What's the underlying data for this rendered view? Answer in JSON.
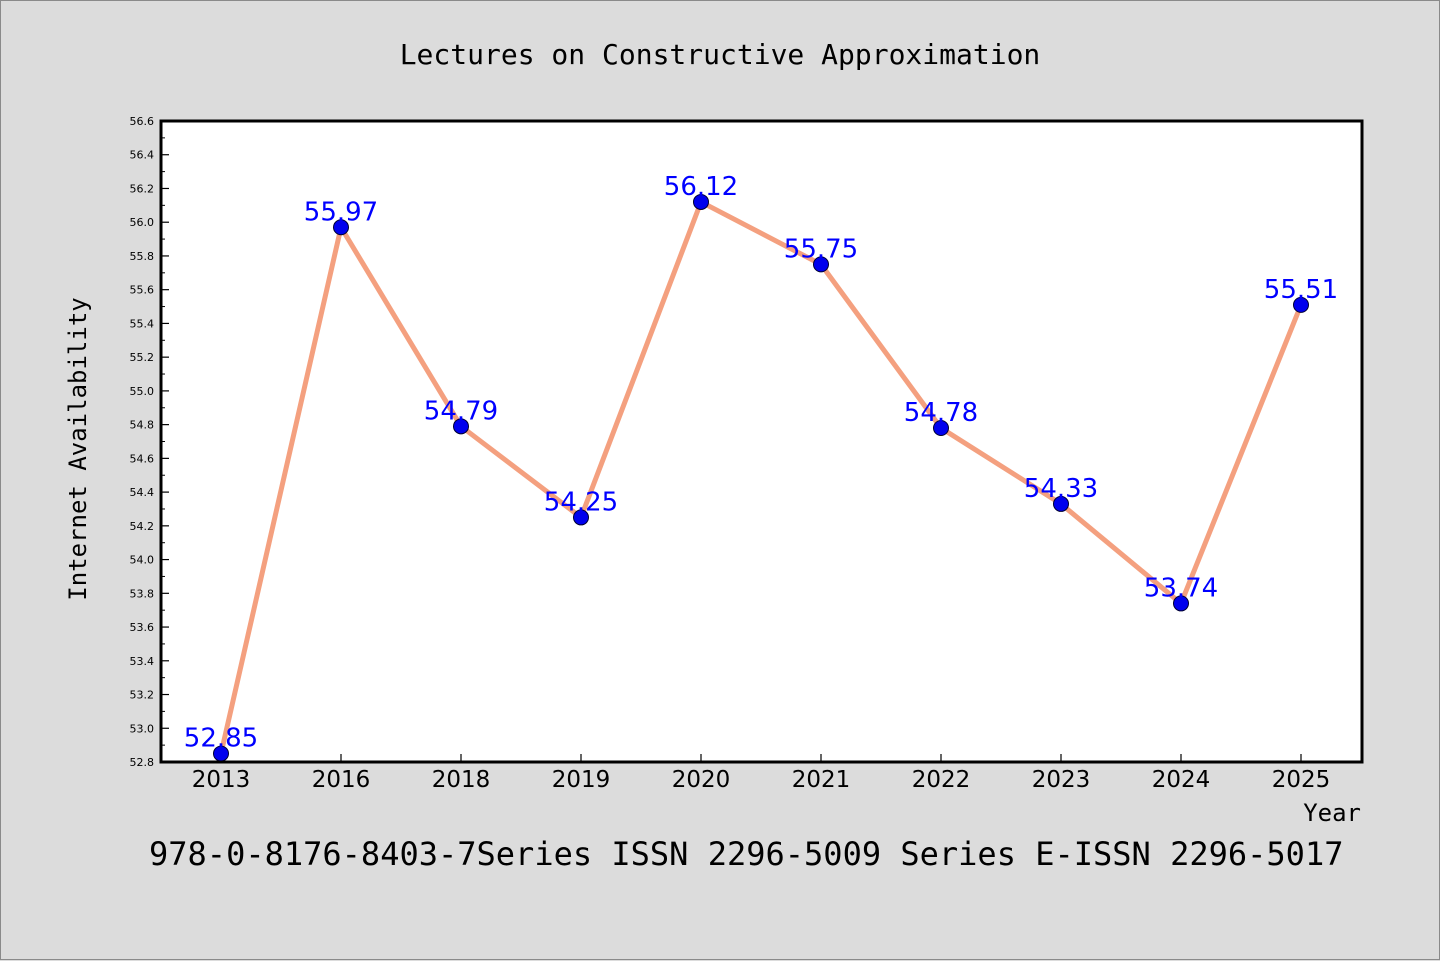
{
  "chart_data": {
    "type": "line",
    "title": "Lectures on Constructive Approximation",
    "xlabel": "Year",
    "ylabel": "Internet Availability",
    "footer": "978-0-8176-8403-7Series ISSN 2296-5009 Series E-ISSN 2296-5017",
    "categories": [
      "2013",
      "2016",
      "2018",
      "2019",
      "2020",
      "2021",
      "2022",
      "2023",
      "2024",
      "2025"
    ],
    "series": [
      {
        "values": [
          52.85,
          55.97,
          54.79,
          54.25,
          56.12,
          55.75,
          54.78,
          54.33,
          53.74,
          55.51
        ],
        "data_labels": [
          "52.85",
          "55.97",
          "54.79",
          "54.25",
          "56.12",
          "55.75",
          "54.78",
          "54.33",
          "53.74",
          "55.51"
        ],
        "line_color": "#f4a07f",
        "marker_color": "#0000ee"
      }
    ],
    "ylim": [
      52.8,
      56.6
    ],
    "yticks": [
      "52.8",
      "53.0",
      "53.2",
      "53.4",
      "53.6",
      "53.8",
      "54.0",
      "54.2",
      "54.4",
      "54.6",
      "54.8",
      "55.0",
      "55.2",
      "55.4",
      "55.6",
      "55.8",
      "56.0",
      "56.2",
      "56.4",
      "56.6"
    ],
    "grid": false,
    "legend": "none",
    "colors": {
      "background": "#dcdcdc",
      "plot_background": "#ffffff",
      "label_color": "#0000ff",
      "text_color": "#000000"
    }
  }
}
